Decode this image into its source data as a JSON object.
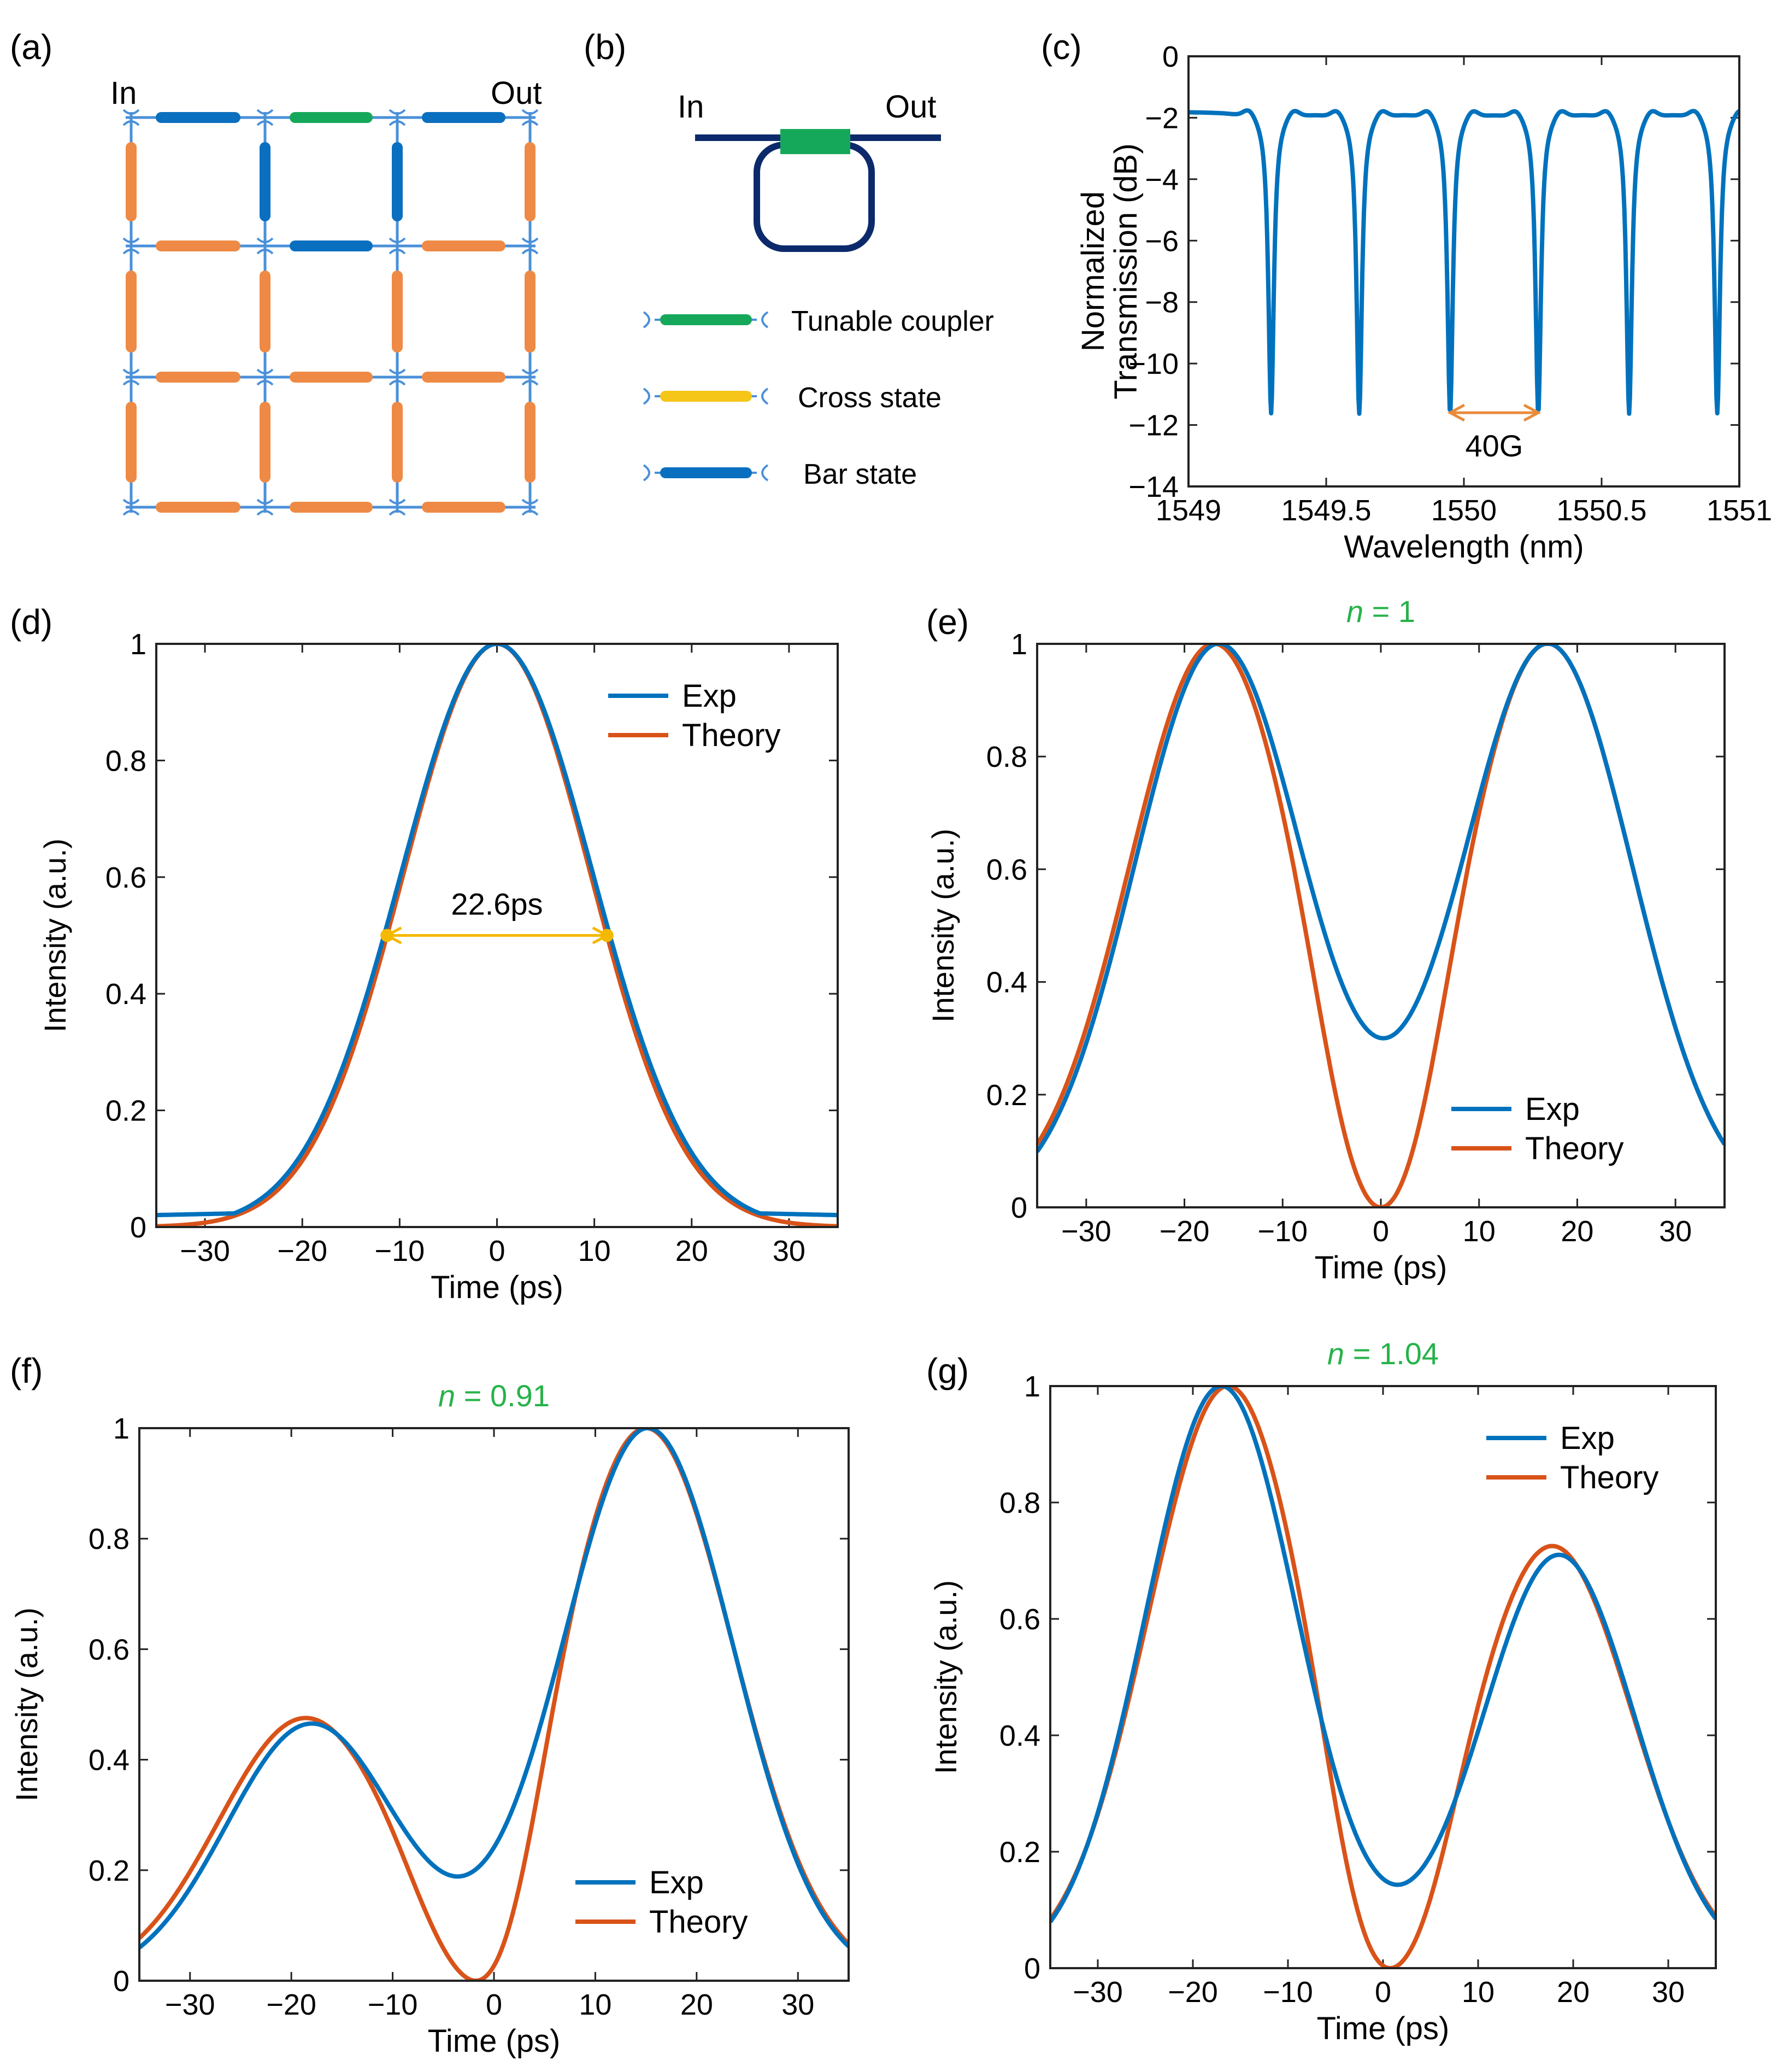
{
  "colors": {
    "exp": "#0072BD",
    "theory": "#D95319",
    "coupler": "#16A85A",
    "cross": "#F5C518",
    "bar": "#0B6FC0",
    "orange_seg": "#EE8A45",
    "ring": "#0C2A6B",
    "mesh_line": "#4A90D9",
    "green_text": "#27B24A",
    "fwhm": "#F5B800",
    "fsr": "#E98B3A"
  },
  "panel_a": {
    "label": "(a)",
    "in_label": "In",
    "out_label": "Out"
  },
  "panel_b": {
    "label": "(b)",
    "in_label": "In",
    "out_label": "Out",
    "legend": [
      "Tunable coupler",
      "Cross state",
      "Bar state"
    ]
  },
  "chart_data": [
    {
      "id": "c",
      "label": "(c)",
      "type": "line",
      "title": "",
      "xlabel": "Wavelength (nm)",
      "ylabel": [
        "Normalized",
        "Transmission (dB)"
      ],
      "xlim": [
        1549,
        1551
      ],
      "ylim": [
        -14,
        0
      ],
      "xticks": [
        1549,
        1549.5,
        1550,
        1550.5,
        1551
      ],
      "xtick_labels": [
        "1549",
        "1549.5",
        "1550",
        "1550.5",
        "1551"
      ],
      "yticks": [
        0,
        -2,
        -4,
        -6,
        -8,
        -10,
        -12,
        -14
      ],
      "ytick_labels": [
        "0",
        "−2",
        "−4",
        "−6",
        "−8",
        "−10",
        "−12",
        "−14"
      ],
      "series": [
        {
          "name": "Transmission",
          "model": "comb",
          "baseline_db": -1.8,
          "dip_centers_nm": [
            1549.3,
            1549.62,
            1549.95,
            1550.27,
            1550.6,
            1550.92
          ],
          "dip_depth_db": -11.6
        }
      ],
      "annotation": {
        "text": "40G",
        "from": 1549.95,
        "to": 1550.27,
        "y": -11.6
      }
    },
    {
      "id": "d",
      "label": "(d)",
      "type": "line",
      "title": "",
      "xlabel": "Time (ps)",
      "ylabel": "Intensity (a.u.)",
      "xlim": [
        -35,
        35
      ],
      "ylim": [
        0,
        1
      ],
      "xticks": [
        -30,
        -20,
        -10,
        0,
        10,
        20,
        30
      ],
      "xtick_labels": [
        "−30",
        "−20",
        "−10",
        "0",
        "10",
        "20",
        "30"
      ],
      "yticks": [
        0,
        0.2,
        0.4,
        0.6,
        0.8,
        1
      ],
      "ytick_labels": [
        "0",
        "0.2",
        "0.4",
        "0.6",
        "0.8",
        "1"
      ],
      "legend": [
        "Exp",
        "Theory"
      ],
      "legend_position": "top-right",
      "series": [
        {
          "name": "Exp",
          "model": "exp_pulse",
          "fwhm": 23.2,
          "floor": 0.025
        },
        {
          "name": "Theory",
          "model": "gauss",
          "fwhm": 22.6
        }
      ],
      "annotation": {
        "text": "22.6ps",
        "from": -11.3,
        "to": 11.3,
        "y": 0.5
      }
    },
    {
      "id": "e",
      "label": "(e)",
      "type": "line",
      "title_prefix": "n",
      "title": " = 1",
      "xlabel": "Time (ps)",
      "ylabel": "Intensity (a.u.)",
      "xlim": [
        -35,
        35
      ],
      "ylim": [
        0,
        1
      ],
      "xticks": [
        -30,
        -20,
        -10,
        0,
        10,
        20,
        30
      ],
      "xtick_labels": [
        "−30",
        "−20",
        "−10",
        "0",
        "10",
        "20",
        "30"
      ],
      "yticks": [
        0,
        0.2,
        0.4,
        0.6,
        0.8,
        1
      ],
      "ytick_labels": [
        "0",
        "0.2",
        "0.4",
        "0.6",
        "0.8",
        "1"
      ],
      "legend": [
        "Exp",
        "Theory"
      ],
      "legend_position": "lower-right",
      "series": [
        {
          "name": "Exp",
          "model": "dbl",
          "p1": -16.5,
          "a1": 1.0,
          "p2": 17.0,
          "a2": 1.0,
          "sigma": 8.6
        },
        {
          "name": "Theory",
          "model": "dbl",
          "p1": -17.0,
          "a1": 1.0,
          "p2": 17.0,
          "a2": 1.0,
          "sigma": 8.6,
          "sub": true
        }
      ]
    },
    {
      "id": "f",
      "label": "(f)",
      "type": "line",
      "title_prefix": "n",
      "title": " = 0.91",
      "xlabel": "Time (ps)",
      "ylabel": "Intensity (a.u.)",
      "xlim": [
        -35,
        35
      ],
      "ylim": [
        0,
        1
      ],
      "xticks": [
        -30,
        -20,
        -10,
        0,
        10,
        20,
        30
      ],
      "xtick_labels": [
        "−30",
        "−20",
        "−10",
        "0",
        "10",
        "20",
        "30"
      ],
      "yticks": [
        0,
        0.2,
        0.4,
        0.6,
        0.8,
        1
      ],
      "ytick_labels": [
        "0",
        "0.2",
        "0.4",
        "0.6",
        "0.8",
        "1"
      ],
      "legend": [
        "Exp",
        "Theory"
      ],
      "legend_position": "lower-right",
      "series": [
        {
          "name": "Exp",
          "model": "dbl",
          "p1": -18.0,
          "a1": 0.465,
          "p2": 15.2,
          "a2": 1.0,
          "sigma": 8.4
        },
        {
          "name": "Theory",
          "model": "dbl",
          "p1": -18.6,
          "a1": 0.475,
          "p2": 15.0,
          "a2": 1.0,
          "sigma": 8.6,
          "sub": true
        }
      ]
    },
    {
      "id": "g",
      "label": "(g)",
      "type": "line",
      "title_prefix": "n",
      "title": " = 1.04",
      "xlabel": "Time (ps)",
      "ylabel": "Intensity (a.u.)",
      "xlim": [
        -35,
        35
      ],
      "ylim": [
        0,
        1
      ],
      "xticks": [
        -30,
        -20,
        -10,
        0,
        10,
        20,
        30
      ],
      "xtick_labels": [
        "−30",
        "−20",
        "−10",
        "0",
        "10",
        "20",
        "30"
      ],
      "yticks": [
        0,
        0.2,
        0.4,
        0.6,
        0.8,
        1
      ],
      "ytick_labels": [
        "0",
        "0.2",
        "0.4",
        "0.6",
        "0.8",
        "1"
      ],
      "legend": [
        "Exp",
        "Theory"
      ],
      "legend_position": "top-right",
      "series": [
        {
          "name": "Exp",
          "model": "dbl",
          "p1": -17.0,
          "a1": 1.0,
          "p2": 18.5,
          "a2": 0.71,
          "sigma": 8.0
        },
        {
          "name": "Theory",
          "model": "dbl",
          "p1": -16.3,
          "a1": 1.0,
          "p2": 17.8,
          "a2": 0.725,
          "sigma": 8.4,
          "sub": true
        }
      ]
    }
  ]
}
